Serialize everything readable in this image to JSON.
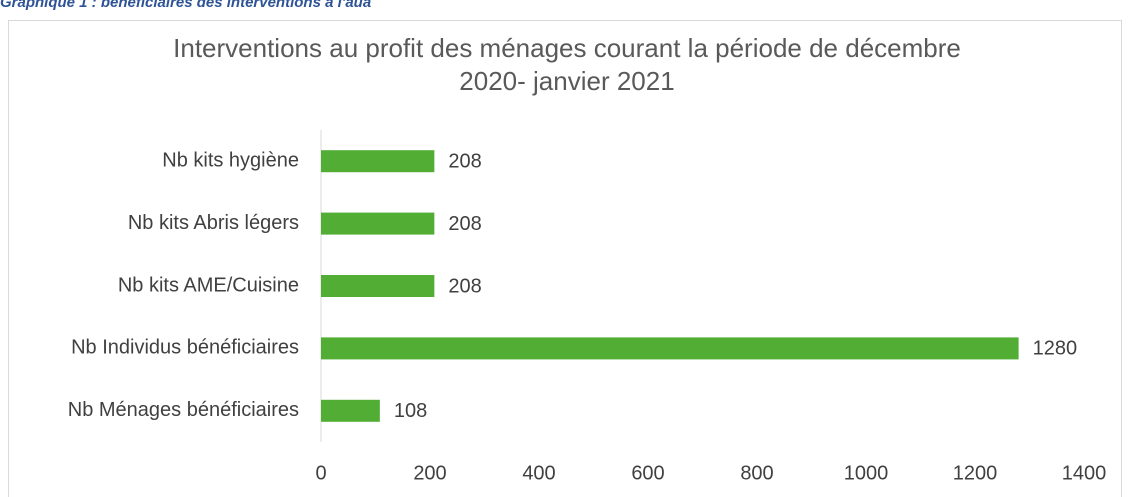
{
  "caption": "Graphique 1 : bénéficiaires des interventions à l'aua",
  "chart_data": {
    "type": "hbar",
    "title": "Interventions au profit des ménages  courant la période de décembre\n2020- janvier 2021",
    "categories": [
      "Nb kits hygiène",
      "Nb kits Abris légers",
      "Nb kits AME/Cuisine",
      "Nb Individus bénéficiaires",
      "Nb Ménages bénéficiaires"
    ],
    "values": [
      208,
      208,
      208,
      1280,
      108
    ],
    "color": "#52ad35",
    "xlim": [
      0,
      1400
    ],
    "xticks": [
      0,
      200,
      400,
      600,
      800,
      1000,
      1200,
      1400
    ],
    "grid": false
  }
}
